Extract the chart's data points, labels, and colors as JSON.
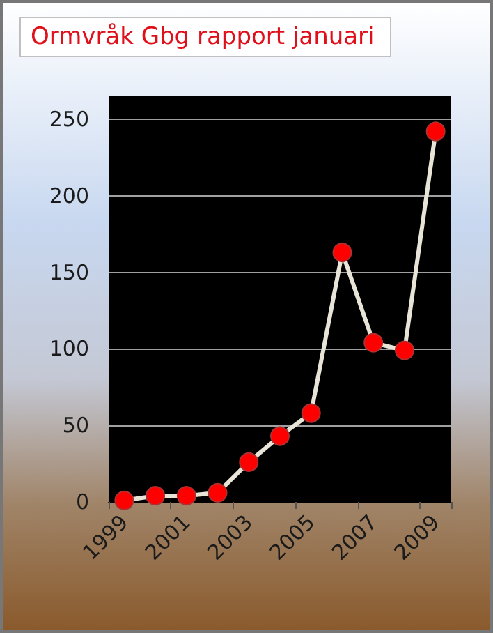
{
  "chart_data": {
    "type": "line",
    "title": "Ormvråk Gbg rapport januari",
    "categories": [
      "1999",
      null,
      "2001",
      null,
      "2003",
      null,
      "2005",
      null,
      "2007",
      null,
      "2009"
    ],
    "series": [
      {
        "color": "#e8e4d8",
        "values": [
          1,
          4,
          4,
          6,
          26,
          43,
          58,
          163,
          104,
          99,
          242
        ]
      }
    ],
    "ylim": [
      0,
      265
    ],
    "yticks": [
      0,
      50,
      100,
      150,
      200,
      250
    ],
    "grid": "y",
    "marker": "circle",
    "line_style": "solid"
  }
}
